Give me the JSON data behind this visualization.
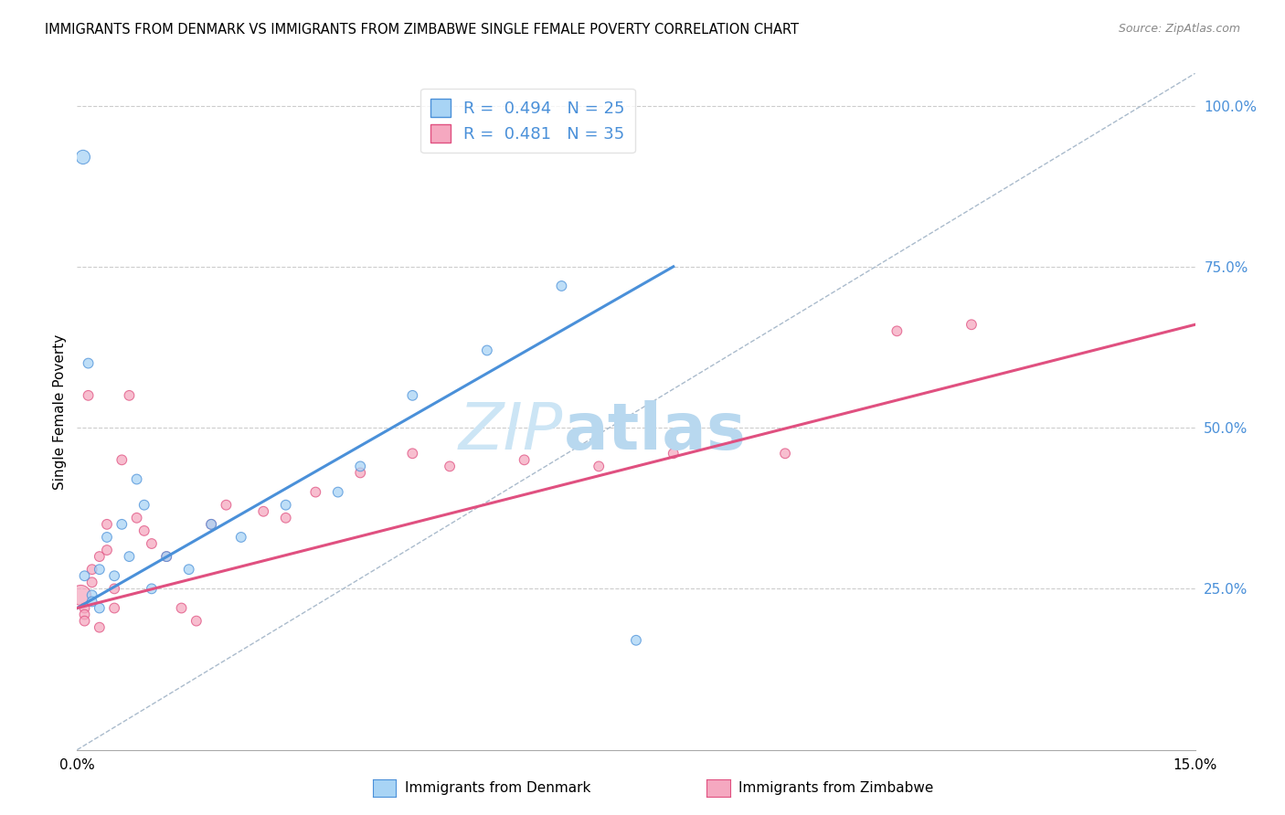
{
  "title": "IMMIGRANTS FROM DENMARK VS IMMIGRANTS FROM ZIMBABWE SINGLE FEMALE POVERTY CORRELATION CHART",
  "source": "Source: ZipAtlas.com",
  "ylabel": "Single Female Poverty",
  "right_yticks": [
    "100.0%",
    "75.0%",
    "50.0%",
    "25.0%"
  ],
  "right_ytick_vals": [
    1.0,
    0.75,
    0.5,
    0.25
  ],
  "legend_denmark": "Immigrants from Denmark",
  "legend_zimbabwe": "Immigrants from Zimbabwe",
  "R_denmark": 0.494,
  "N_denmark": 25,
  "R_zimbabwe": 0.481,
  "N_zimbabwe": 35,
  "color_denmark_fill": "#a8d4f5",
  "color_zimbabwe_fill": "#f5a8c0",
  "color_denmark_line": "#4a90d9",
  "color_zimbabwe_line": "#e05080",
  "color_diag": "#aabbcc",
  "xlim": [
    0.0,
    0.15
  ],
  "ylim": [
    0.0,
    1.05
  ],
  "denmark_x": [
    0.0008,
    0.0015,
    0.001,
    0.002,
    0.002,
    0.003,
    0.003,
    0.004,
    0.005,
    0.006,
    0.007,
    0.008,
    0.009,
    0.01,
    0.012,
    0.015,
    0.018,
    0.022,
    0.028,
    0.035,
    0.038,
    0.045,
    0.055,
    0.065,
    0.075
  ],
  "denmark_y": [
    0.92,
    0.6,
    0.27,
    0.24,
    0.23,
    0.22,
    0.28,
    0.33,
    0.27,
    0.35,
    0.3,
    0.42,
    0.38,
    0.25,
    0.3,
    0.28,
    0.35,
    0.33,
    0.38,
    0.4,
    0.44,
    0.55,
    0.62,
    0.72,
    0.17
  ],
  "denmark_size": [
    120,
    60,
    60,
    60,
    60,
    60,
    60,
    60,
    60,
    60,
    60,
    60,
    60,
    60,
    60,
    60,
    60,
    60,
    60,
    60,
    60,
    60,
    60,
    60,
    60
  ],
  "zimbabwe_x": [
    0.0005,
    0.001,
    0.001,
    0.001,
    0.0015,
    0.002,
    0.002,
    0.003,
    0.003,
    0.004,
    0.004,
    0.005,
    0.005,
    0.006,
    0.007,
    0.008,
    0.009,
    0.01,
    0.012,
    0.014,
    0.016,
    0.018,
    0.02,
    0.025,
    0.028,
    0.032,
    0.038,
    0.045,
    0.05,
    0.06,
    0.07,
    0.08,
    0.095,
    0.11,
    0.12
  ],
  "zimbabwe_y": [
    0.24,
    0.22,
    0.21,
    0.2,
    0.55,
    0.28,
    0.26,
    0.3,
    0.19,
    0.35,
    0.31,
    0.25,
    0.22,
    0.45,
    0.55,
    0.36,
    0.34,
    0.32,
    0.3,
    0.22,
    0.2,
    0.35,
    0.38,
    0.37,
    0.36,
    0.4,
    0.43,
    0.46,
    0.44,
    0.45,
    0.44,
    0.46,
    0.46,
    0.65,
    0.66
  ],
  "zimbabwe_size": [
    250,
    60,
    60,
    60,
    60,
    60,
    60,
    60,
    60,
    60,
    60,
    60,
    60,
    60,
    60,
    60,
    60,
    60,
    60,
    60,
    60,
    60,
    60,
    60,
    60,
    60,
    60,
    60,
    60,
    60,
    60,
    60,
    60,
    60,
    60
  ],
  "dk_line_x": [
    0.0,
    0.08
  ],
  "dk_line_y": [
    0.22,
    0.75
  ],
  "zw_line_x": [
    0.0,
    0.15
  ],
  "zw_line_y": [
    0.22,
    0.66
  ]
}
